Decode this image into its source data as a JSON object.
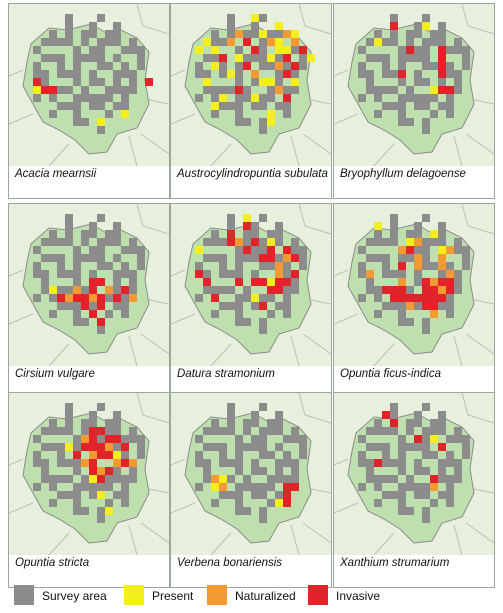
{
  "colors": {
    "background": "#e6f0dc",
    "region_fill": "#bedfae",
    "region_stroke": "#8c8c8c",
    "road": "#b9c2b5",
    "survey": "#8c8c8c",
    "present": "#f4ee1c",
    "naturalized": "#f39a33",
    "invasive": "#e2232a"
  },
  "legend": {
    "survey_label": "Survey area",
    "present_label": "Present",
    "naturalized_label": "Naturalized",
    "invasive_label": "Invasive"
  },
  "panels": [
    {
      "caption": "Acacia mearnsii",
      "cells": [
        [
          1,
          8,
          "invasive"
        ],
        [
          1,
          9,
          "present"
        ],
        [
          2,
          9,
          "invasive"
        ],
        [
          3,
          9,
          "invasive"
        ],
        [
          15,
          8,
          "invasive"
        ],
        [
          12,
          12,
          "present"
        ],
        [
          9,
          13,
          "present"
        ]
      ]
    },
    {
      "caption": "Austrocylindropuntia subulata",
      "cells": [
        [
          8,
          0,
          "present"
        ],
        [
          11,
          1,
          "present"
        ],
        [
          6,
          2,
          "naturalized"
        ],
        [
          9,
          2,
          "present"
        ],
        [
          12,
          2,
          "naturalized"
        ],
        [
          13,
          2,
          "present"
        ],
        [
          2,
          3,
          "present"
        ],
        [
          5,
          3,
          "naturalized"
        ],
        [
          7,
          3,
          "invasive"
        ],
        [
          10,
          3,
          "naturalized"
        ],
        [
          11,
          3,
          "present"
        ],
        [
          13,
          3,
          "naturalized"
        ],
        [
          1,
          4,
          "present"
        ],
        [
          3,
          4,
          "present"
        ],
        [
          8,
          4,
          "invasive"
        ],
        [
          11,
          4,
          "present"
        ],
        [
          12,
          4,
          "present"
        ],
        [
          14,
          4,
          "invasive"
        ],
        [
          4,
          5,
          "invasive"
        ],
        [
          6,
          5,
          "present"
        ],
        [
          10,
          5,
          "present"
        ],
        [
          12,
          5,
          "invasive"
        ],
        [
          15,
          5,
          "present"
        ],
        [
          3,
          6,
          "present"
        ],
        [
          7,
          6,
          "invasive"
        ],
        [
          11,
          6,
          "naturalized"
        ],
        [
          13,
          6,
          "invasive"
        ],
        [
          5,
          7,
          "present"
        ],
        [
          8,
          7,
          "naturalized"
        ],
        [
          12,
          7,
          "invasive"
        ],
        [
          2,
          8,
          "present"
        ],
        [
          9,
          8,
          "present"
        ],
        [
          10,
          8,
          "present"
        ],
        [
          13,
          8,
          "present"
        ],
        [
          6,
          9,
          "invasive"
        ],
        [
          11,
          9,
          "naturalized"
        ],
        [
          4,
          10,
          "present"
        ],
        [
          8,
          10,
          "present"
        ],
        [
          12,
          10,
          "invasive"
        ],
        [
          3,
          11,
          "present"
        ],
        [
          10,
          12,
          "present"
        ],
        [
          10,
          13,
          "present"
        ]
      ]
    },
    {
      "caption": "Bryophyllum delagoense",
      "cells": [
        [
          5,
          1,
          "invasive"
        ],
        [
          9,
          1,
          "present"
        ],
        [
          3,
          3,
          "present"
        ],
        [
          7,
          4,
          "invasive"
        ],
        [
          11,
          4,
          "invasive"
        ],
        [
          11,
          5,
          "invasive"
        ],
        [
          11,
          6,
          "invasive"
        ],
        [
          6,
          7,
          "invasive"
        ],
        [
          11,
          7,
          "invasive"
        ],
        [
          10,
          9,
          "present"
        ],
        [
          11,
          9,
          "invasive"
        ],
        [
          12,
          9,
          "invasive"
        ]
      ]
    },
    {
      "caption": "Cirsium vulgare",
      "cells": [
        [
          8,
          8,
          "invasive"
        ],
        [
          9,
          8,
          "invasive"
        ],
        [
          3,
          9,
          "present"
        ],
        [
          6,
          9,
          "naturalized"
        ],
        [
          8,
          9,
          "invasive"
        ],
        [
          10,
          9,
          "naturalized"
        ],
        [
          12,
          9,
          "invasive"
        ],
        [
          4,
          10,
          "invasive"
        ],
        [
          5,
          10,
          "naturalized"
        ],
        [
          6,
          10,
          "invasive"
        ],
        [
          7,
          10,
          "invasive"
        ],
        [
          8,
          10,
          "naturalized"
        ],
        [
          9,
          10,
          "invasive"
        ],
        [
          11,
          10,
          "invasive"
        ],
        [
          13,
          10,
          "naturalized"
        ],
        [
          7,
          11,
          "invasive"
        ],
        [
          9,
          11,
          "invasive"
        ],
        [
          8,
          12,
          "invasive"
        ],
        [
          9,
          13,
          "invasive"
        ]
      ]
    },
    {
      "caption": "Datura stramonium",
      "cells": [
        [
          7,
          0,
          "present"
        ],
        [
          7,
          1,
          "invasive"
        ],
        [
          5,
          2,
          "invasive"
        ],
        [
          5,
          3,
          "invasive"
        ],
        [
          6,
          3,
          "naturalized"
        ],
        [
          8,
          3,
          "invasive"
        ],
        [
          10,
          3,
          "present"
        ],
        [
          1,
          4,
          "present"
        ],
        [
          7,
          4,
          "invasive"
        ],
        [
          10,
          4,
          "invasive"
        ],
        [
          12,
          4,
          "invasive"
        ],
        [
          9,
          5,
          "invasive"
        ],
        [
          10,
          5,
          "invasive"
        ],
        [
          12,
          5,
          "naturalized"
        ],
        [
          13,
          5,
          "invasive"
        ],
        [
          11,
          6,
          "naturalized"
        ],
        [
          1,
          7,
          "invasive"
        ],
        [
          11,
          7,
          "naturalized"
        ],
        [
          13,
          7,
          "invasive"
        ],
        [
          2,
          8,
          "invasive"
        ],
        [
          6,
          8,
          "invasive"
        ],
        [
          8,
          8,
          "invasive"
        ],
        [
          9,
          8,
          "invasive"
        ],
        [
          10,
          8,
          "present"
        ],
        [
          11,
          8,
          "invasive"
        ],
        [
          12,
          8,
          "invasive"
        ],
        [
          10,
          9,
          "invasive"
        ],
        [
          11,
          9,
          "invasive"
        ],
        [
          3,
          10,
          "invasive"
        ],
        [
          8,
          10,
          "present"
        ],
        [
          9,
          11,
          "invasive"
        ]
      ]
    },
    {
      "caption": "Opuntia ficus-indica",
      "cells": [
        [
          3,
          1,
          "present"
        ],
        [
          10,
          2,
          "present"
        ],
        [
          7,
          3,
          "present"
        ],
        [
          8,
          3,
          "naturalized"
        ],
        [
          6,
          4,
          "naturalized"
        ],
        [
          7,
          4,
          "invasive"
        ],
        [
          11,
          4,
          "present"
        ],
        [
          12,
          4,
          "naturalized"
        ],
        [
          8,
          5,
          "naturalized"
        ],
        [
          11,
          5,
          "naturalized"
        ],
        [
          6,
          6,
          "invasive"
        ],
        [
          8,
          6,
          "naturalized"
        ],
        [
          11,
          6,
          "naturalized"
        ],
        [
          2,
          7,
          "naturalized"
        ],
        [
          12,
          7,
          "naturalized"
        ],
        [
          6,
          8,
          "naturalized"
        ],
        [
          9,
          8,
          "invasive"
        ],
        [
          10,
          8,
          "naturalized"
        ],
        [
          11,
          8,
          "invasive"
        ],
        [
          12,
          8,
          "invasive"
        ],
        [
          4,
          9,
          "invasive"
        ],
        [
          5,
          9,
          "invasive"
        ],
        [
          6,
          9,
          "invasive"
        ],
        [
          9,
          9,
          "invasive"
        ],
        [
          10,
          9,
          "invasive"
        ],
        [
          11,
          9,
          "naturalized"
        ],
        [
          12,
          9,
          "invasive"
        ],
        [
          5,
          10,
          "invasive"
        ],
        [
          6,
          10,
          "invasive"
        ],
        [
          7,
          10,
          "invasive"
        ],
        [
          8,
          10,
          "invasive"
        ],
        [
          9,
          10,
          "invasive"
        ],
        [
          10,
          10,
          "invasive"
        ],
        [
          11,
          10,
          "invasive"
        ],
        [
          7,
          11,
          "naturalized"
        ],
        [
          9,
          11,
          "invasive"
        ],
        [
          10,
          11,
          "invasive"
        ],
        [
          10,
          12,
          "naturalized"
        ]
      ]
    },
    {
      "caption": "Opuntia stricta",
      "cells": [
        [
          8,
          3,
          "invasive"
        ],
        [
          9,
          3,
          "invasive"
        ],
        [
          7,
          4,
          "naturalized"
        ],
        [
          8,
          4,
          "invasive"
        ],
        [
          10,
          4,
          "invasive"
        ],
        [
          11,
          4,
          "invasive"
        ],
        [
          5,
          5,
          "present"
        ],
        [
          7,
          5,
          "invasive"
        ],
        [
          8,
          5,
          "invasive"
        ],
        [
          9,
          5,
          "invasive"
        ],
        [
          10,
          5,
          "naturalized"
        ],
        [
          12,
          5,
          "invasive"
        ],
        [
          6,
          6,
          "invasive"
        ],
        [
          8,
          6,
          "naturalized"
        ],
        [
          9,
          6,
          "invasive"
        ],
        [
          10,
          6,
          "invasive"
        ],
        [
          11,
          6,
          "present"
        ],
        [
          7,
          7,
          "naturalized"
        ],
        [
          8,
          7,
          "invasive"
        ],
        [
          11,
          7,
          "naturalized"
        ],
        [
          12,
          7,
          "invasive"
        ],
        [
          13,
          7,
          "naturalized"
        ],
        [
          8,
          8,
          "invasive"
        ],
        [
          9,
          8,
          "naturalized"
        ],
        [
          10,
          8,
          "invasive"
        ],
        [
          8,
          9,
          "present"
        ],
        [
          9,
          9,
          "invasive"
        ],
        [
          9,
          11,
          "present"
        ],
        [
          10,
          13,
          "present"
        ]
      ]
    },
    {
      "caption": "Verbena bonariensis",
      "cells": [
        [
          3,
          9,
          "naturalized"
        ],
        [
          4,
          9,
          "present"
        ],
        [
          3,
          10,
          "present"
        ],
        [
          4,
          10,
          "naturalized"
        ],
        [
          12,
          10,
          "invasive"
        ],
        [
          13,
          10,
          "invasive"
        ],
        [
          12,
          11,
          "invasive"
        ],
        [
          11,
          12,
          "present"
        ],
        [
          12,
          12,
          "invasive"
        ]
      ]
    },
    {
      "caption": "Xanthium strumarium",
      "cells": [
        [
          4,
          1,
          "invasive"
        ],
        [
          5,
          2,
          "invasive"
        ],
        [
          8,
          4,
          "invasive"
        ],
        [
          10,
          4,
          "present"
        ],
        [
          11,
          5,
          "invasive"
        ],
        [
          3,
          7,
          "invasive"
        ],
        [
          10,
          9,
          "invasive"
        ],
        [
          10,
          10,
          "naturalized"
        ]
      ]
    }
  ]
}
